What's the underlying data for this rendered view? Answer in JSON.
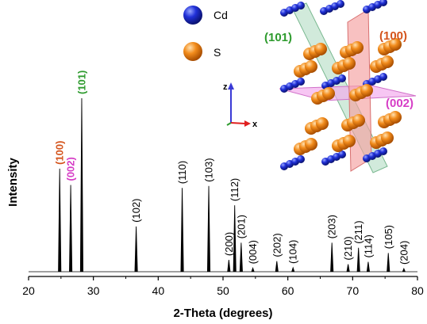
{
  "chart_data": {
    "type": "line",
    "xlabel": "2-Theta (degrees)",
    "ylabel": "Intensity",
    "xlim": [
      20,
      80
    ],
    "xticks": [
      20,
      30,
      40,
      50,
      60,
      70,
      80
    ],
    "xtick_labels": [
      "20",
      "30",
      "40",
      "50",
      "60",
      "70",
      "80"
    ],
    "ylim": [
      0,
      1.0
    ],
    "grid": false,
    "peaks": [
      {
        "label": "(100)",
        "x": 24.8,
        "y": 0.594,
        "color": "#d4541c"
      },
      {
        "label": "(002)",
        "x": 26.5,
        "y": 0.5,
        "color": "#d63dc6"
      },
      {
        "label": "(101)",
        "x": 28.2,
        "y": 1.0,
        "color": "#2e9b2e"
      },
      {
        "label": "(102)",
        "x": 36.6,
        "y": 0.261,
        "color": "#000000"
      },
      {
        "label": "(110)",
        "x": 43.7,
        "y": 0.483,
        "color": "#000000"
      },
      {
        "label": "(103)",
        "x": 47.8,
        "y": 0.494,
        "color": "#000000"
      },
      {
        "label": "(200)",
        "x": 50.9,
        "y": 0.068,
        "color": "#000000"
      },
      {
        "label": "(112)",
        "x": 51.8,
        "y": 0.383,
        "color": "#000000"
      },
      {
        "label": "(201)",
        "x": 52.8,
        "y": 0.167,
        "color": "#000000"
      },
      {
        "label": "(004)",
        "x": 54.6,
        "y": 0.021,
        "color": "#000000"
      },
      {
        "label": "(202)",
        "x": 58.3,
        "y": 0.061,
        "color": "#000000"
      },
      {
        "label": "(104)",
        "x": 60.8,
        "y": 0.023,
        "color": "#000000"
      },
      {
        "label": "(203)",
        "x": 66.8,
        "y": 0.167,
        "color": "#000000"
      },
      {
        "label": "(210)",
        "x": 69.3,
        "y": 0.043,
        "color": "#000000"
      },
      {
        "label": "(211)",
        "x": 70.9,
        "y": 0.138,
        "color": "#000000"
      },
      {
        "label": "(114)",
        "x": 72.4,
        "y": 0.057,
        "color": "#000000"
      },
      {
        "label": "(105)",
        "x": 75.5,
        "y": 0.108,
        "color": "#000000"
      },
      {
        "label": "(204)",
        "x": 77.9,
        "y": 0.018,
        "color": "#000000"
      }
    ]
  },
  "inset": {
    "legend": [
      {
        "label": "Cd",
        "color": "#1a2ad6"
      },
      {
        "label": "S",
        "color": "#f08a1a"
      }
    ],
    "axes": [
      {
        "label": "z",
        "color": "#3a3ad6"
      },
      {
        "label": "x",
        "color": "#e02020"
      }
    ],
    "planes": [
      {
        "label": "(101)",
        "color": "#2e9b2e"
      },
      {
        "label": "(100)",
        "color": "#d4541c"
      },
      {
        "label": "(002)",
        "color": "#d63dc6"
      }
    ]
  }
}
